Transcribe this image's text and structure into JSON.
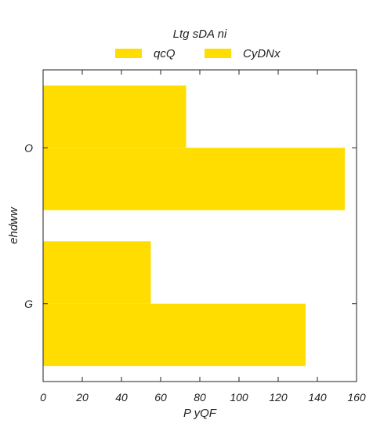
{
  "chart_data": {
    "type": "bar",
    "orientation": "horizontal",
    "categories": [
      "O",
      "G"
    ],
    "series": [
      {
        "name": "qcQ",
        "values": [
          73,
          55
        ],
        "color": "#ffdd00"
      },
      {
        "name": "CyDNx",
        "values": [
          154,
          134
        ],
        "color": "#ffdd00"
      }
    ],
    "title": "",
    "xlabel": "P yQF",
    "ylabel": "ehdww",
    "xlim": [
      0,
      160
    ],
    "xticks": [
      0,
      20,
      40,
      60,
      80,
      100,
      120,
      140,
      160
    ],
    "grid": false,
    "legend": {
      "title": "Ltg sDA ni",
      "position": "top-center",
      "columns": 2
    }
  }
}
